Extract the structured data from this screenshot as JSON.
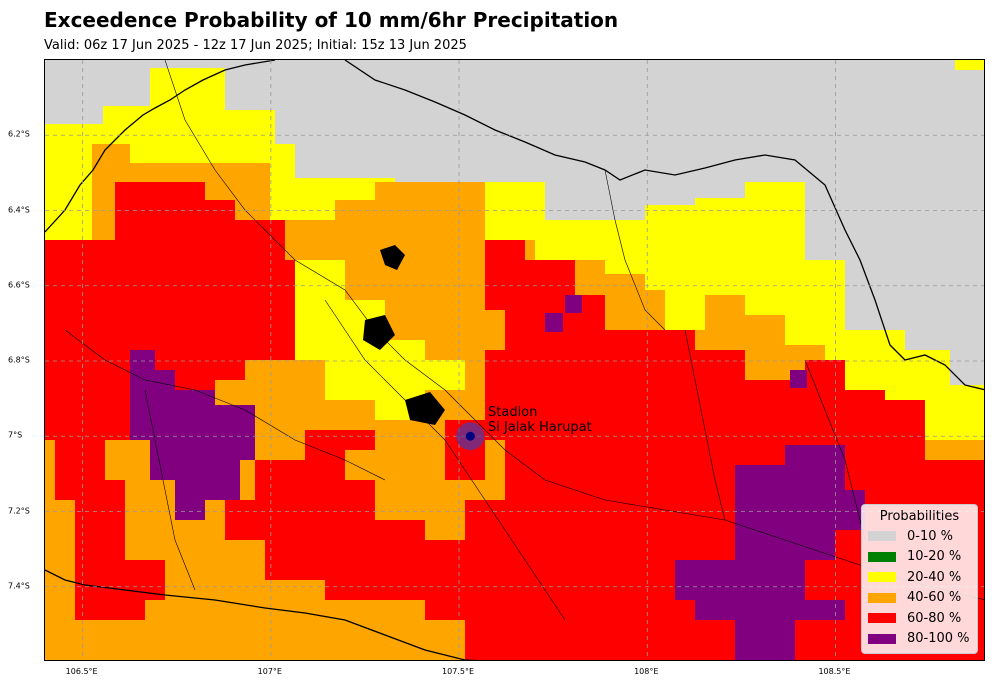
{
  "title": "Exceedence Probability of 10 mm/6hr Precipitation",
  "subtitle": "Valid: 06z 17 Jun 2025 - 12z 17 Jun 2025; Initial: 15z 13 Jun 2025",
  "map": {
    "lon_range": [
      106.4,
      108.9
    ],
    "lat_range": [
      -7.6,
      -6.0
    ],
    "lat_ticks": [
      "6.2°S",
      "6.4°S",
      "6.6°S",
      "6.8°S",
      "7°S",
      "7.2°S",
      "7.4°S"
    ],
    "lon_ticks": [
      "106.5°E",
      "107°E",
      "107.5°E",
      "108°E",
      "108.5°E"
    ],
    "gridlines": true,
    "background_color": "#d3d3d3"
  },
  "station": {
    "label_line1": "Stadion",
    "label_line2": "Si Jalak Harupat",
    "lon": 107.53,
    "lat": -7.0,
    "marker_color": "#4b3aa8"
  },
  "legend": {
    "title": "Probabilities",
    "placement": "lower-right",
    "items": [
      {
        "label": "0-10 %",
        "color": "#d3d3d3"
      },
      {
        "label": "10-20 %",
        "color": "#008000"
      },
      {
        "label": "20-40 %",
        "color": "#ffff00"
      },
      {
        "label": "40-60 %",
        "color": "#ffa500"
      },
      {
        "label": "60-80 %",
        "color": "#ff0000"
      },
      {
        "label": "80-100 %",
        "color": "#800080"
      }
    ]
  }
}
